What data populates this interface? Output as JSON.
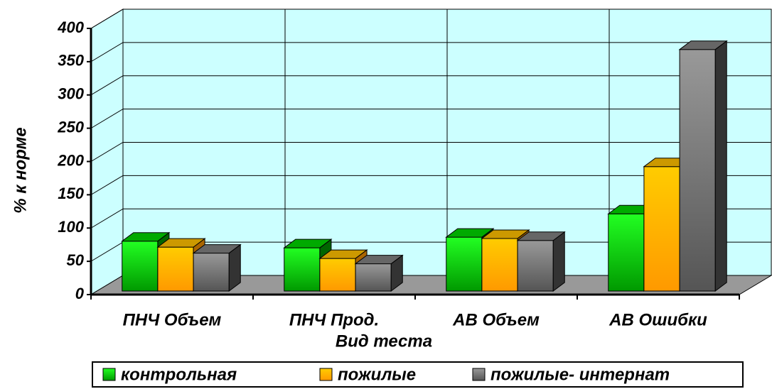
{
  "chart_data": {
    "type": "bar3d",
    "x_label": "Вид теста",
    "y_label": "% к норме",
    "categories": [
      "ПНЧ Объем",
      "ПНЧ Прод.",
      "АВ Объем",
      "АВ Ошибки"
    ],
    "series": [
      {
        "name": "контрольная",
        "color": "#00cc00",
        "values": [
          75,
          65,
          81,
          116
        ]
      },
      {
        "name": "пожилые",
        "color": "#ffbb00",
        "values": [
          66,
          49,
          79,
          187
        ]
      },
      {
        "name": "пожилые- интернат",
        "color": "#888888",
        "values": [
          57,
          41,
          76,
          363
        ]
      }
    ],
    "ylim": [
      0,
      400
    ],
    "yticks": [
      0,
      50,
      100,
      150,
      200,
      250,
      300,
      350,
      400
    ],
    "grid": true,
    "legend": "bottom"
  }
}
